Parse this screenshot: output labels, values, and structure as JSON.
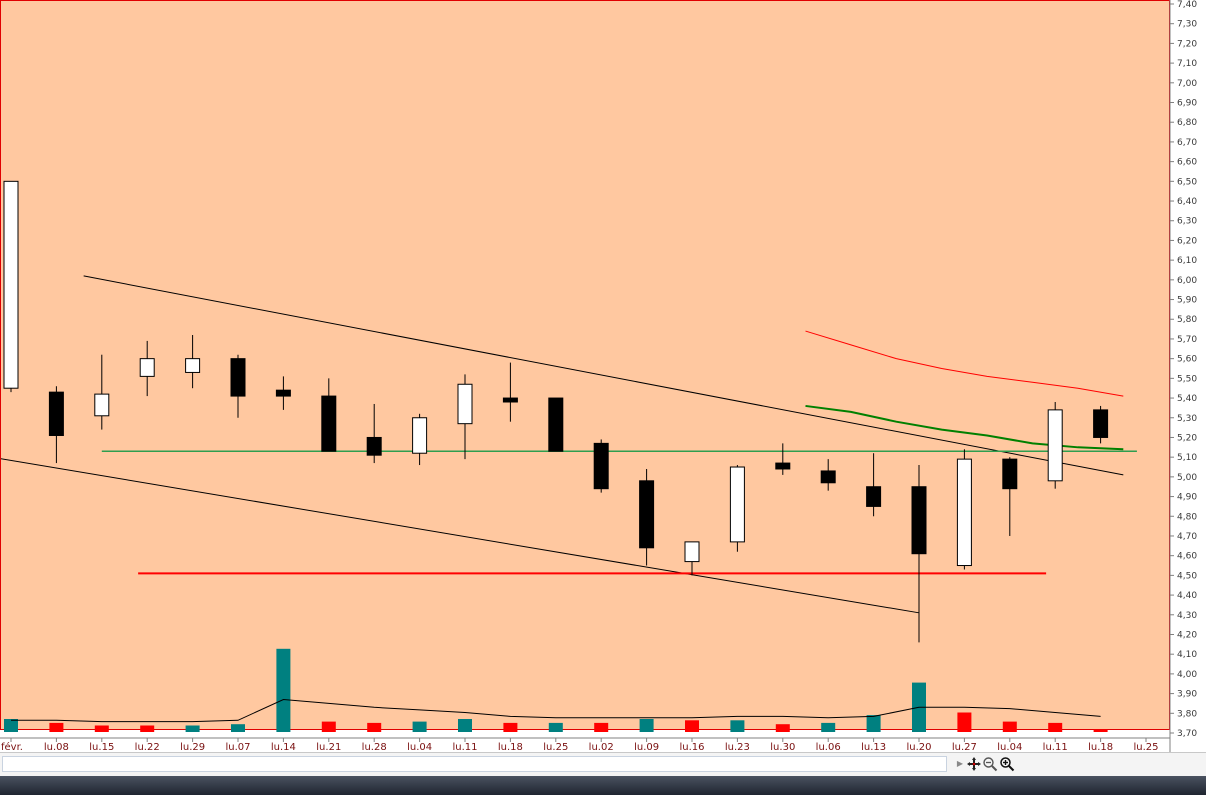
{
  "chart_data": {
    "type": "candlestick",
    "y_axis": {
      "position": "right",
      "min": 3.7,
      "max": 7.4,
      "ticks": [
        "7,40",
        "7,30",
        "7,20",
        "7,10",
        "7,00",
        "6,90",
        "6,80",
        "6,70",
        "6,60",
        "6,50",
        "6,40",
        "6,30",
        "6,20",
        "6,10",
        "6,00",
        "5,90",
        "5,80",
        "5,70",
        "5,60",
        "5,50",
        "5,40",
        "5,30",
        "5,20",
        "5,10",
        "5,00",
        "4,90",
        "4,80",
        "4,70",
        "4,60",
        "4,50",
        "4,40",
        "4,30",
        "4,20",
        "4,10",
        "4,00",
        "3,90",
        "3,80",
        "3,70"
      ]
    },
    "x_axis": {
      "labels": [
        "févr.",
        "lu.08",
        "lu.15",
        "lu.22",
        "lu.29",
        "lu.07",
        "lu.14",
        "lu.21",
        "lu.28",
        "lu.04",
        "lu.11",
        "lu.18",
        "lu.25",
        "lu.02",
        "lu.09",
        "lu.16",
        "lu.23",
        "lu.30",
        "lu.06",
        "lu.13",
        "lu.20",
        "lu.27",
        "lu.04",
        "lu.11",
        "lu.18",
        "lu.25"
      ]
    },
    "candles": [
      {
        "open": 5.45,
        "high": 6.5,
        "low": 5.43,
        "close": 6.5
      },
      {
        "open": 5.43,
        "high": 5.46,
        "low": 5.07,
        "close": 5.21
      },
      {
        "open": 5.31,
        "high": 5.62,
        "low": 5.24,
        "close": 5.42
      },
      {
        "open": 5.51,
        "high": 5.69,
        "low": 5.41,
        "close": 5.6
      },
      {
        "open": 5.53,
        "high": 5.72,
        "low": 5.45,
        "close": 5.6
      },
      {
        "open": 5.6,
        "high": 5.62,
        "low": 5.3,
        "close": 5.41
      },
      {
        "open": 5.44,
        "high": 5.51,
        "low": 5.34,
        "close": 5.41
      },
      {
        "open": 5.41,
        "high": 5.5,
        "low": 5.13,
        "close": 5.13
      },
      {
        "open": 5.2,
        "high": 5.37,
        "low": 5.07,
        "close": 5.11
      },
      {
        "open": 5.12,
        "high": 5.32,
        "low": 5.06,
        "close": 5.3
      },
      {
        "open": 5.27,
        "high": 5.52,
        "low": 5.09,
        "close": 5.47
      },
      {
        "open": 5.4,
        "high": 5.58,
        "low": 5.28,
        "close": 5.38
      },
      {
        "open": 5.4,
        "high": 5.4,
        "low": 5.13,
        "close": 5.13
      },
      {
        "open": 5.17,
        "high": 5.19,
        "low": 4.92,
        "close": 4.94
      },
      {
        "open": 4.98,
        "high": 5.04,
        "low": 4.55,
        "close": 4.64
      },
      {
        "open": 4.57,
        "high": 4.67,
        "low": 4.5,
        "close": 4.67
      },
      {
        "open": 4.67,
        "high": 5.06,
        "low": 4.62,
        "close": 5.05
      },
      {
        "open": 5.07,
        "high": 5.17,
        "low": 5.01,
        "close": 5.04
      },
      {
        "open": 5.03,
        "high": 5.09,
        "low": 4.93,
        "close": 4.97
      },
      {
        "open": 4.95,
        "high": 5.12,
        "low": 4.8,
        "close": 4.85
      },
      {
        "open": 4.95,
        "high": 5.06,
        "low": 4.16,
        "close": 4.61
      },
      {
        "open": 4.55,
        "high": 5.14,
        "low": 4.53,
        "close": 5.09
      },
      {
        "open": 5.09,
        "high": 5.1,
        "low": 4.7,
        "close": 4.94
      },
      {
        "open": 4.98,
        "high": 5.38,
        "low": 4.94,
        "close": 5.34
      },
      {
        "open": 5.34,
        "high": 5.36,
        "low": 5.17,
        "close": 5.2
      }
    ],
    "volume_bars": [
      {
        "height": 0.1,
        "color": "#008080"
      },
      {
        "height": 0.07,
        "color": "#ff0000"
      },
      {
        "height": 0.05,
        "color": "#ff0000"
      },
      {
        "height": 0.05,
        "color": "#ff0000"
      },
      {
        "height": 0.05,
        "color": "#008080"
      },
      {
        "height": 0.06,
        "color": "#008080"
      },
      {
        "height": 0.64,
        "color": "#008080"
      },
      {
        "height": 0.08,
        "color": "#ff0000"
      },
      {
        "height": 0.07,
        "color": "#ff0000"
      },
      {
        "height": 0.08,
        "color": "#008080"
      },
      {
        "height": 0.1,
        "color": "#008080"
      },
      {
        "height": 0.07,
        "color": "#ff0000"
      },
      {
        "height": 0.07,
        "color": "#008080"
      },
      {
        "height": 0.07,
        "color": "#ff0000"
      },
      {
        "height": 0.1,
        "color": "#008080"
      },
      {
        "height": 0.09,
        "color": "#ff0000"
      },
      {
        "height": 0.09,
        "color": "#008080"
      },
      {
        "height": 0.06,
        "color": "#ff0000"
      },
      {
        "height": 0.07,
        "color": "#008080"
      },
      {
        "height": 0.13,
        "color": "#008080"
      },
      {
        "height": 0.38,
        "color": "#008080"
      },
      {
        "height": 0.15,
        "color": "#ff0000"
      },
      {
        "height": 0.08,
        "color": "#ff0000"
      },
      {
        "height": 0.07,
        "color": "#ff0000"
      },
      {
        "height": 0.02,
        "color": "#ff0000"
      }
    ],
    "volume_average": [
      0.09,
      0.09,
      0.08,
      0.08,
      0.08,
      0.09,
      0.25,
      0.22,
      0.19,
      0.17,
      0.15,
      0.12,
      0.11,
      0.11,
      0.11,
      0.11,
      0.12,
      0.12,
      0.11,
      0.12,
      0.19,
      0.19,
      0.18,
      0.15,
      0.12
    ],
    "moving_average_red": [
      [
        17.5,
        5.74
      ],
      [
        18.5,
        5.67
      ],
      [
        19.5,
        5.6
      ],
      [
        20.5,
        5.55
      ],
      [
        21.5,
        5.51
      ],
      [
        22.5,
        5.48
      ],
      [
        23.5,
        5.45
      ],
      [
        24.5,
        5.41
      ]
    ],
    "moving_average_green": [
      [
        17.5,
        5.36
      ],
      [
        18.5,
        5.33
      ],
      [
        19.5,
        5.28
      ],
      [
        20.5,
        5.24
      ],
      [
        21.5,
        5.21
      ],
      [
        22.5,
        5.17
      ],
      [
        23.5,
        5.15
      ],
      [
        24.5,
        5.14
      ]
    ],
    "trendlines": [
      {
        "from": [
          1.6,
          6.02
        ],
        "to": [
          24.5,
          5.01
        ],
        "color": "#000000",
        "width": 1
      },
      {
        "from": [
          -1.2,
          5.13
        ],
        "to": [
          20,
          4.31
        ],
        "color": "#000000",
        "width": 1
      },
      {
        "from": [
          2.0,
          5.13
        ],
        "to": [
          24.8,
          5.13
        ],
        "color": "#2e9e4f",
        "width": 1.5
      },
      {
        "from": [
          2.8,
          4.51
        ],
        "to": [
          22.8,
          4.51
        ],
        "color": "#ff0000",
        "width": 2
      }
    ],
    "colors": {
      "background": "#ffc8a0",
      "up_candle": "#ffffff",
      "down_candle": "#000000",
      "ma_red": "#ff0000",
      "ma_green": "#008000"
    },
    "grid": false
  },
  "toolbar": {
    "icons": [
      "triangle-right-icon",
      "move-crosshair-icon",
      "zoom-out-icon",
      "zoom-in-icon"
    ]
  }
}
